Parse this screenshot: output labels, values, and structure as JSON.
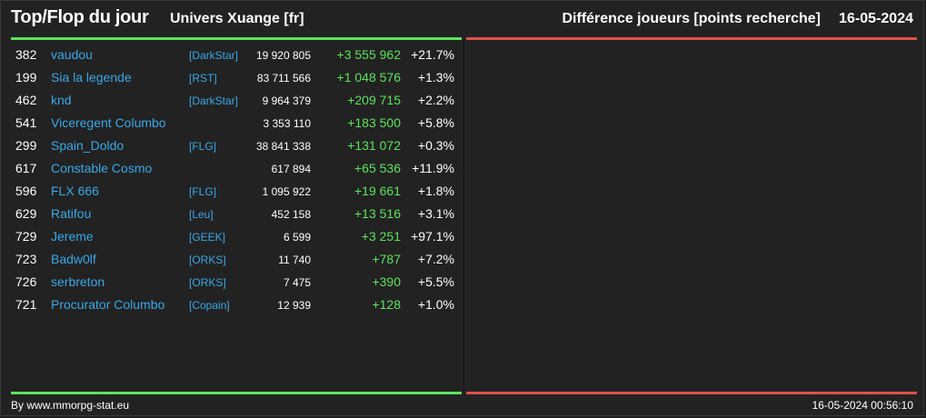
{
  "header": {
    "title": "Top/Flop du jour",
    "universe": "Univers Xuange [fr]",
    "metric": "Différence joueurs [points recherche]",
    "date": "16-05-2024"
  },
  "colors": {
    "top_line": "#5ee35e",
    "flop_line": "#e0504a",
    "player_link": "#3aa8e8",
    "positive_diff": "#5ee35e"
  },
  "top_players": [
    {
      "rank": "382",
      "name": "vaudou",
      "alliance": "[DarkStar]",
      "points": "19 920 805",
      "diff": "+3 555 962",
      "pct": "+21.7%"
    },
    {
      "rank": "199",
      "name": "Sia la legende",
      "alliance": "[RST]",
      "points": "83 711 566",
      "diff": "+1 048 576",
      "pct": "+1.3%"
    },
    {
      "rank": "462",
      "name": "knd",
      "alliance": "[DarkStar]",
      "points": "9 964 379",
      "diff": "+209 715",
      "pct": "+2.2%"
    },
    {
      "rank": "541",
      "name": "Viceregent Columbo",
      "alliance": "",
      "points": "3 353 110",
      "diff": "+183 500",
      "pct": "+5.8%"
    },
    {
      "rank": "299",
      "name": "Spain_Doldo",
      "alliance": "[FLG]",
      "points": "38 841 338",
      "diff": "+131 072",
      "pct": "+0.3%"
    },
    {
      "rank": "617",
      "name": "Constable Cosmo",
      "alliance": "",
      "points": "617 894",
      "diff": "+65 536",
      "pct": "+11.9%"
    },
    {
      "rank": "596",
      "name": "FLX 666",
      "alliance": "[FLG]",
      "points": "1 095 922",
      "diff": "+19 661",
      "pct": "+1.8%"
    },
    {
      "rank": "629",
      "name": "Ratifou",
      "alliance": "[Leu]",
      "points": "452 158",
      "diff": "+13 516",
      "pct": "+3.1%"
    },
    {
      "rank": "729",
      "name": "Jereme",
      "alliance": "[GEEK]",
      "points": "6 599",
      "diff": "+3 251",
      "pct": "+97.1%"
    },
    {
      "rank": "723",
      "name": "Badw0lf",
      "alliance": "[ORKS]",
      "points": "11 740",
      "diff": "+787",
      "pct": "+7.2%"
    },
    {
      "rank": "726",
      "name": "serbreton",
      "alliance": "[ORKS]",
      "points": "7 475",
      "diff": "+390",
      "pct": "+5.5%"
    },
    {
      "rank": "721",
      "name": "Procurator Columbo",
      "alliance": "[Copain]",
      "points": "12 939",
      "diff": "+128",
      "pct": "+1.0%"
    }
  ],
  "footer": {
    "credit": "By www.mmorpg-stat.eu",
    "timestamp": "16-05-2024 00:56:10"
  }
}
